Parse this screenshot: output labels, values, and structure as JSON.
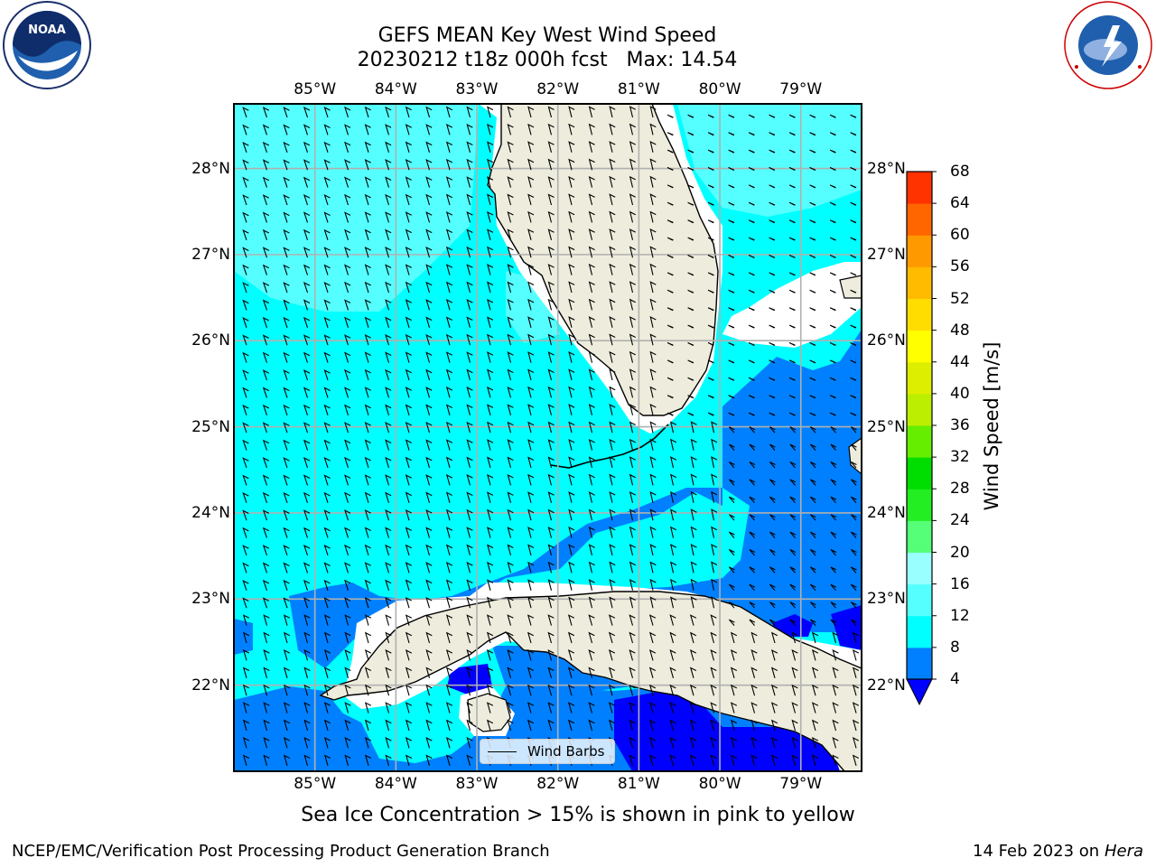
{
  "header": {
    "title_line1": "GEFS MEAN Key West Wind Speed",
    "title_line2": "20230212 t18z 000h fcst   Max: 14.54"
  },
  "logos": {
    "left": {
      "name": "NOAA",
      "ring_text": "NATIONAL OCEANIC AND ATMOSPHERIC ADMINISTRATION",
      "bottom_text": "U.S. DEPARTMENT OF COMMERCE"
    },
    "right": {
      "ring_text": "NATIONAL WEATHER SERVICE"
    }
  },
  "map": {
    "lon_labels": [
      "85°W",
      "84°W",
      "83°W",
      "82°W",
      "81°W",
      "80°W",
      "79°W"
    ],
    "lat_labels": [
      "28°N",
      "27°N",
      "26°N",
      "25°N",
      "24°N",
      "23°N",
      "22°N"
    ],
    "extent": {
      "lon_min": -86.0,
      "lon_max": -78.25,
      "lat_min": 21.0,
      "lat_max": 28.75
    },
    "ocean_colors": {
      "light_cyan": "#55ffff",
      "cyan": "#00ffff",
      "blue": "#0080ff",
      "dark_blue": "#0000ff"
    },
    "land_color": "#eeecdc",
    "legend_label": "Wind Barbs"
  },
  "colorbar": {
    "label": "Wind Speed [m/s]",
    "ticks": [
      "4",
      "8",
      "12",
      "16",
      "20",
      "24",
      "28",
      "32",
      "36",
      "40",
      "44",
      "48",
      "52",
      "56",
      "60",
      "64",
      "68"
    ],
    "colors": [
      "#0080ff",
      "#00ffff",
      "#55ffff",
      "#99ffff",
      "#55ff77",
      "#22ee22",
      "#00dd00",
      "#66ee00",
      "#bbee00",
      "#ddee00",
      "#ffff00",
      "#ffdd00",
      "#ffbb00",
      "#ff9900",
      "#ff6600",
      "#ff3300",
      "#ff0000"
    ],
    "under_color": "#0000ff"
  },
  "note": "Sea Ice Concentration > 15% is shown in pink to yellow",
  "footer": {
    "left": "NCEP/EMC/Verification Post Processing Product Generation Branch",
    "right_date": "14 Feb 2023 on",
    "right_host": "Hera"
  }
}
